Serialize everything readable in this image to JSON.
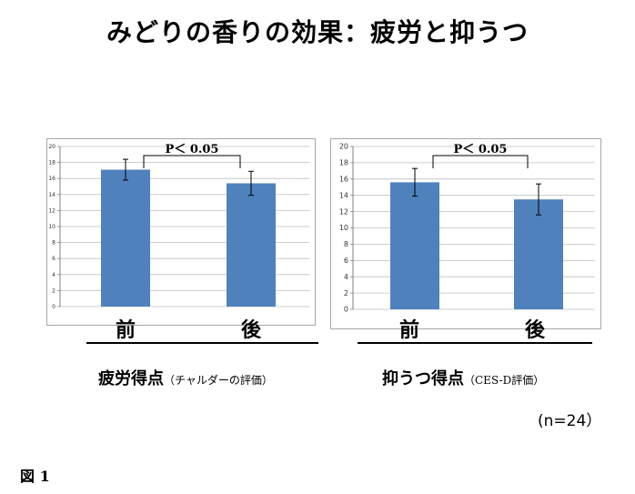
{
  "title": "みどりの香りの効果：疲労と抑うつ",
  "chart_data": [
    {
      "type": "bar",
      "categories": [
        "前",
        "後"
      ],
      "values": [
        17.1,
        15.4
      ],
      "errors": [
        1.3,
        1.5
      ],
      "ylim": [
        0,
        20
      ],
      "yticks": [
        "0",
        "2",
        "4",
        "6",
        "8",
        "10",
        "12",
        "14",
        "16",
        "18",
        "20"
      ],
      "significance": "P＜ 0.05",
      "caption_main": "疲労得点",
      "caption_sub": "（チャルダーの評価）",
      "bar_color": "#4f81bd"
    },
    {
      "type": "bar",
      "categories": [
        "前",
        "後"
      ],
      "values": [
        15.6,
        13.5
      ],
      "errors": [
        1.7,
        1.9
      ],
      "ylim": [
        0,
        20
      ],
      "yticks": [
        "0",
        "2",
        "4",
        "6",
        "8",
        "10",
        "12",
        "14",
        "16",
        "18",
        "20"
      ],
      "significance": "P＜ 0.05",
      "caption_main": "抑うつ得点",
      "caption_sub": "（CES-D評価）",
      "bar_color": "#4f81bd"
    }
  ],
  "n_label": "(n=24）",
  "figure_label": "図 1"
}
